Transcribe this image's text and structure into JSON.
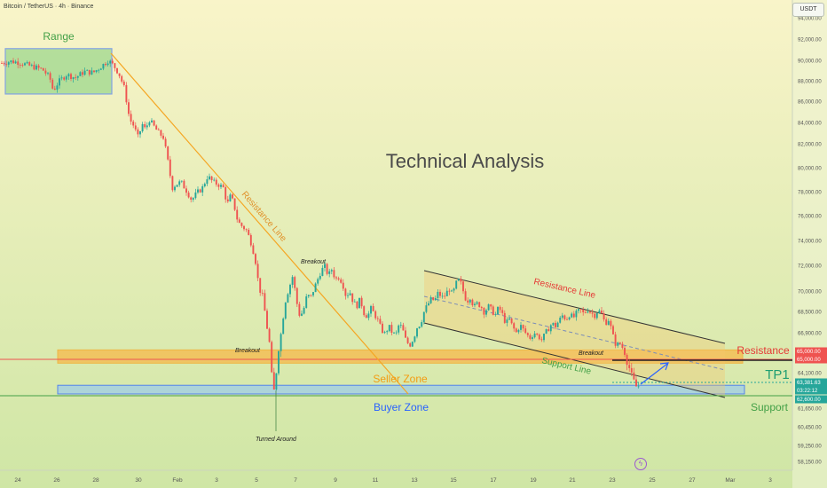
{
  "header": {
    "symbol": "Bitcoin / TetherUS · 4h · Binance",
    "currency_button": "USDT"
  },
  "colors": {
    "bg_top": "#f9f4c9",
    "bg_bottom": "#cfe6a5",
    "bull": "#26a69a",
    "bear": "#ef5350",
    "orange": "#f5a623",
    "blue": "#2962ff",
    "green_text": "#43a047",
    "red_text": "#e53935"
  },
  "chart_data": {
    "type": "candlestick",
    "title": "Technical Analysis",
    "ylim": [
      57500,
      95800
    ],
    "y_ticks": [
      "94,000.00",
      "92,000.00",
      "90,000.00",
      "88,000.00",
      "86,000.00",
      "84,000.00",
      "82,000.00",
      "80,000.00",
      "78,000.00",
      "76,000.00",
      "74,000.00",
      "72,000.00",
      "70,000.00",
      "68,500.00",
      "66,900.00",
      "64,100.00",
      "61,650.00",
      "60,450.00",
      "59,250.00",
      "58,150.00"
    ],
    "x_ticks": [
      "24",
      "26",
      "28",
      "30",
      "Feb",
      "3",
      "5",
      "7",
      "9",
      "11",
      "13",
      "15",
      "17",
      "19",
      "21",
      "23",
      "25",
      "27",
      "Mar",
      "3"
    ],
    "price_path": [
      [
        0,
        89700
      ],
      [
        12,
        89900
      ],
      [
        22,
        89800
      ],
      [
        32,
        89500
      ],
      [
        40,
        89300
      ],
      [
        48,
        89100
      ],
      [
        56,
        88300
      ],
      [
        60,
        87000
      ],
      [
        66,
        87900
      ],
      [
        75,
        88600
      ],
      [
        85,
        88300
      ],
      [
        95,
        88900
      ],
      [
        105,
        88800
      ],
      [
        114,
        89400
      ],
      [
        122,
        90000
      ],
      [
        128,
        89500
      ],
      [
        134,
        88700
      ],
      [
        140,
        87300
      ],
      [
        146,
        84300
      ],
      [
        150,
        83800
      ],
      [
        156,
        82500
      ],
      [
        160,
        83900
      ],
      [
        164,
        83300
      ],
      [
        168,
        84300
      ],
      [
        172,
        83800
      ],
      [
        178,
        83100
      ],
      [
        184,
        82600
      ],
      [
        190,
        80200
      ],
      [
        194,
        78300
      ],
      [
        198,
        78600
      ],
      [
        204,
        78800
      ],
      [
        210,
        78100
      ],
      [
        216,
        77300
      ],
      [
        222,
        77900
      ],
      [
        228,
        78300
      ],
      [
        234,
        79300
      ],
      [
        240,
        78800
      ],
      [
        246,
        78600
      ],
      [
        252,
        78300
      ],
      [
        256,
        76900
      ],
      [
        260,
        77700
      ],
      [
        264,
        76800
      ],
      [
        268,
        75500
      ],
      [
        272,
        75200
      ],
      [
        278,
        74800
      ],
      [
        284,
        73600
      ],
      [
        288,
        72300
      ],
      [
        292,
        70200
      ],
      [
        296,
        69600
      ],
      [
        300,
        67800
      ],
      [
        304,
        65700
      ],
      [
        308,
        62500
      ],
      [
        311,
        64000
      ],
      [
        314,
        65200
      ],
      [
        318,
        67600
      ],
      [
        322,
        69400
      ],
      [
        326,
        70300
      ],
      [
        330,
        71200
      ],
      [
        334,
        69300
      ],
      [
        338,
        68100
      ],
      [
        342,
        68600
      ],
      [
        346,
        69700
      ],
      [
        350,
        69500
      ],
      [
        354,
        70200
      ],
      [
        358,
        70900
      ],
      [
        362,
        71600
      ],
      [
        366,
        71900
      ],
      [
        370,
        71200
      ],
      [
        374,
        71700
      ],
      [
        378,
        70900
      ],
      [
        382,
        71100
      ],
      [
        386,
        70600
      ],
      [
        390,
        69600
      ],
      [
        394,
        70000
      ],
      [
        398,
        69200
      ],
      [
        402,
        68900
      ],
      [
        406,
        69400
      ],
      [
        410,
        68400
      ],
      [
        414,
        68100
      ],
      [
        418,
        68700
      ],
      [
        422,
        68300
      ],
      [
        426,
        67800
      ],
      [
        430,
        67100
      ],
      [
        434,
        66800
      ],
      [
        438,
        67400
      ],
      [
        442,
        66900
      ],
      [
        446,
        66700
      ],
      [
        450,
        67600
      ],
      [
        454,
        67100
      ],
      [
        458,
        66000
      ],
      [
        462,
        65600
      ],
      [
        466,
        66300
      ],
      [
        470,
        67300
      ],
      [
        474,
        67600
      ],
      [
        478,
        68500
      ],
      [
        482,
        69000
      ],
      [
        486,
        69400
      ],
      [
        490,
        69300
      ],
      [
        494,
        69900
      ],
      [
        498,
        69500
      ],
      [
        502,
        69700
      ],
      [
        506,
        70200
      ],
      [
        510,
        69700
      ],
      [
        514,
        70600
      ],
      [
        518,
        70900
      ],
      [
        522,
        70000
      ],
      [
        526,
        69200
      ],
      [
        530,
        69600
      ],
      [
        534,
        68800
      ],
      [
        538,
        69100
      ],
      [
        542,
        68900
      ],
      [
        546,
        68400
      ],
      [
        550,
        68900
      ],
      [
        554,
        68600
      ],
      [
        558,
        68200
      ],
      [
        562,
        68800
      ],
      [
        566,
        68300
      ],
      [
        570,
        67600
      ],
      [
        574,
        67900
      ],
      [
        578,
        67300
      ],
      [
        582,
        66900
      ],
      [
        586,
        67500
      ],
      [
        590,
        67100
      ],
      [
        594,
        66700
      ],
      [
        598,
        66300
      ],
      [
        602,
        66900
      ],
      [
        606,
        66600
      ],
      [
        610,
        66100
      ],
      [
        614,
        66800
      ],
      [
        618,
        67200
      ],
      [
        622,
        67600
      ],
      [
        626,
        67400
      ],
      [
        630,
        67800
      ],
      [
        634,
        68200
      ],
      [
        638,
        67900
      ],
      [
        642,
        68300
      ],
      [
        646,
        68000
      ],
      [
        650,
        68400
      ],
      [
        654,
        68600
      ],
      [
        658,
        68300
      ],
      [
        662,
        68700
      ],
      [
        666,
        68400
      ],
      [
        670,
        68200
      ],
      [
        674,
        68600
      ],
      [
        678,
        68300
      ],
      [
        682,
        67600
      ],
      [
        686,
        67900
      ],
      [
        690,
        66900
      ],
      [
        694,
        65600
      ],
      [
        698,
        65900
      ],
      [
        702,
        65300
      ],
      [
        706,
        64700
      ],
      [
        710,
        64200
      ],
      [
        714,
        63600
      ],
      [
        718,
        63100
      ],
      [
        721,
        63380
      ]
    ],
    "zones": [
      {
        "name": "Seller Zone",
        "low": 64500,
        "high": 65150
      },
      {
        "name": "Buyer Zone",
        "low": 62600,
        "high": 63300
      },
      {
        "name": "Range",
        "low": 86700,
        "high": 91100
      }
    ],
    "price_labels": [
      {
        "label": "65,000.00",
        "color": "#ef5350"
      },
      {
        "label": "65,000.00",
        "color": "#ef5350"
      },
      {
        "label": "63,381.63",
        "color": "#26a69a"
      },
      {
        "label": "03:22:12",
        "color": "#26a69a"
      },
      {
        "label": "62,600.00",
        "color": "#26a69a"
      }
    ],
    "annotations": [
      "Range",
      "Resistance Line",
      "Breakout",
      "Breakout",
      "Turned Around",
      "Seller Zone",
      "Buyer Zone",
      "Resistance Line",
      "Support Line",
      "Breakout",
      "Resistance",
      "TP1",
      "Support"
    ]
  }
}
